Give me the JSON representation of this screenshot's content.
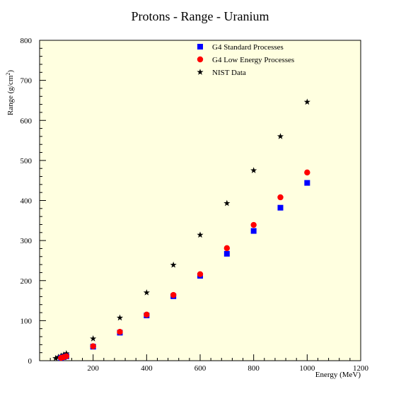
{
  "chart_data": {
    "type": "scatter",
    "title": "Protons - Range - Uranium",
    "xlabel": "Energy (MeV)",
    "ylabel": "Range (g/cm",
    "ylabel_superscript": "2",
    "ylabel_close": ")",
    "xlim": [
      0,
      1200
    ],
    "ylim": [
      0,
      800
    ],
    "x_ticks": [
      0,
      200,
      400,
      600,
      800,
      1000,
      1200
    ],
    "y_ticks": [
      0,
      100,
      200,
      300,
      400,
      500,
      600,
      700,
      800
    ],
    "x_tick_labels": [
      "200",
      "400",
      "600",
      "800",
      "1000",
      "1200"
    ],
    "y_tick_labels": [
      "0",
      "100",
      "200",
      "300",
      "400",
      "500",
      "600",
      "700",
      "800"
    ],
    "legend_placement": "top-center",
    "plot_background": "#ffffe0",
    "series": [
      {
        "name": "G4 Standard Processes",
        "marker": "square",
        "color": "#0000ff",
        "x": [
          80,
          90,
          100,
          200,
          300,
          400,
          500,
          600,
          700,
          800,
          900,
          1000
        ],
        "y": [
          7,
          9,
          11,
          35,
          70,
          113,
          161,
          212,
          267,
          324,
          382,
          444
        ]
      },
      {
        "name": "G4 Low Energy Processes",
        "marker": "circle",
        "color": "#ff0000",
        "x": [
          80,
          90,
          100,
          200,
          300,
          400,
          500,
          600,
          700,
          800,
          900,
          1000
        ],
        "y": [
          7,
          9,
          11,
          36,
          72,
          115,
          164,
          216,
          281,
          339,
          408,
          470
        ]
      },
      {
        "name": "NIST Data",
        "marker": "star",
        "color": "#000000",
        "x": [
          60,
          70,
          80,
          90,
          100,
          200,
          300,
          400,
          500,
          600,
          700,
          800,
          900,
          1000
        ],
        "y": [
          6,
          9,
          12,
          15,
          18,
          55,
          107,
          170,
          239,
          314,
          393,
          475,
          560,
          646
        ]
      }
    ]
  }
}
